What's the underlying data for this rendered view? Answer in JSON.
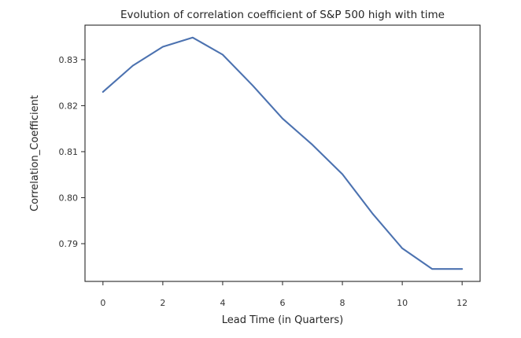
{
  "chart_data": {
    "type": "line",
    "title": "Evolution of correlation coefficient of S&P 500 high with time",
    "xlabel": "Lead Time (in Quarters)",
    "ylabel": "Correlation_Coefficient",
    "x": [
      0,
      1,
      2,
      3,
      4,
      5,
      6,
      7,
      8,
      9,
      10,
      11,
      12
    ],
    "series": [
      {
        "values": [
          0.823,
          0.8287,
          0.8328,
          0.8348,
          0.8311,
          0.8244,
          0.8172,
          0.8115,
          0.8051,
          0.7966,
          0.789,
          0.7845,
          0.7845
        ],
        "color": "#4C72B0"
      }
    ],
    "xticks": [
      0,
      2,
      4,
      6,
      8,
      10,
      12
    ],
    "xtick_labels": [
      "0",
      "2",
      "4",
      "6",
      "8",
      "10",
      "12"
    ],
    "yticks": [
      0.79,
      0.8,
      0.81,
      0.82,
      0.83
    ],
    "ytick_labels": [
      "0.79",
      "0.80",
      "0.81",
      "0.82",
      "0.83"
    ],
    "xlim": [
      -0.6,
      12.6
    ],
    "ylim": [
      0.7818,
      0.8375
    ],
    "grid": false,
    "legend": "none"
  }
}
